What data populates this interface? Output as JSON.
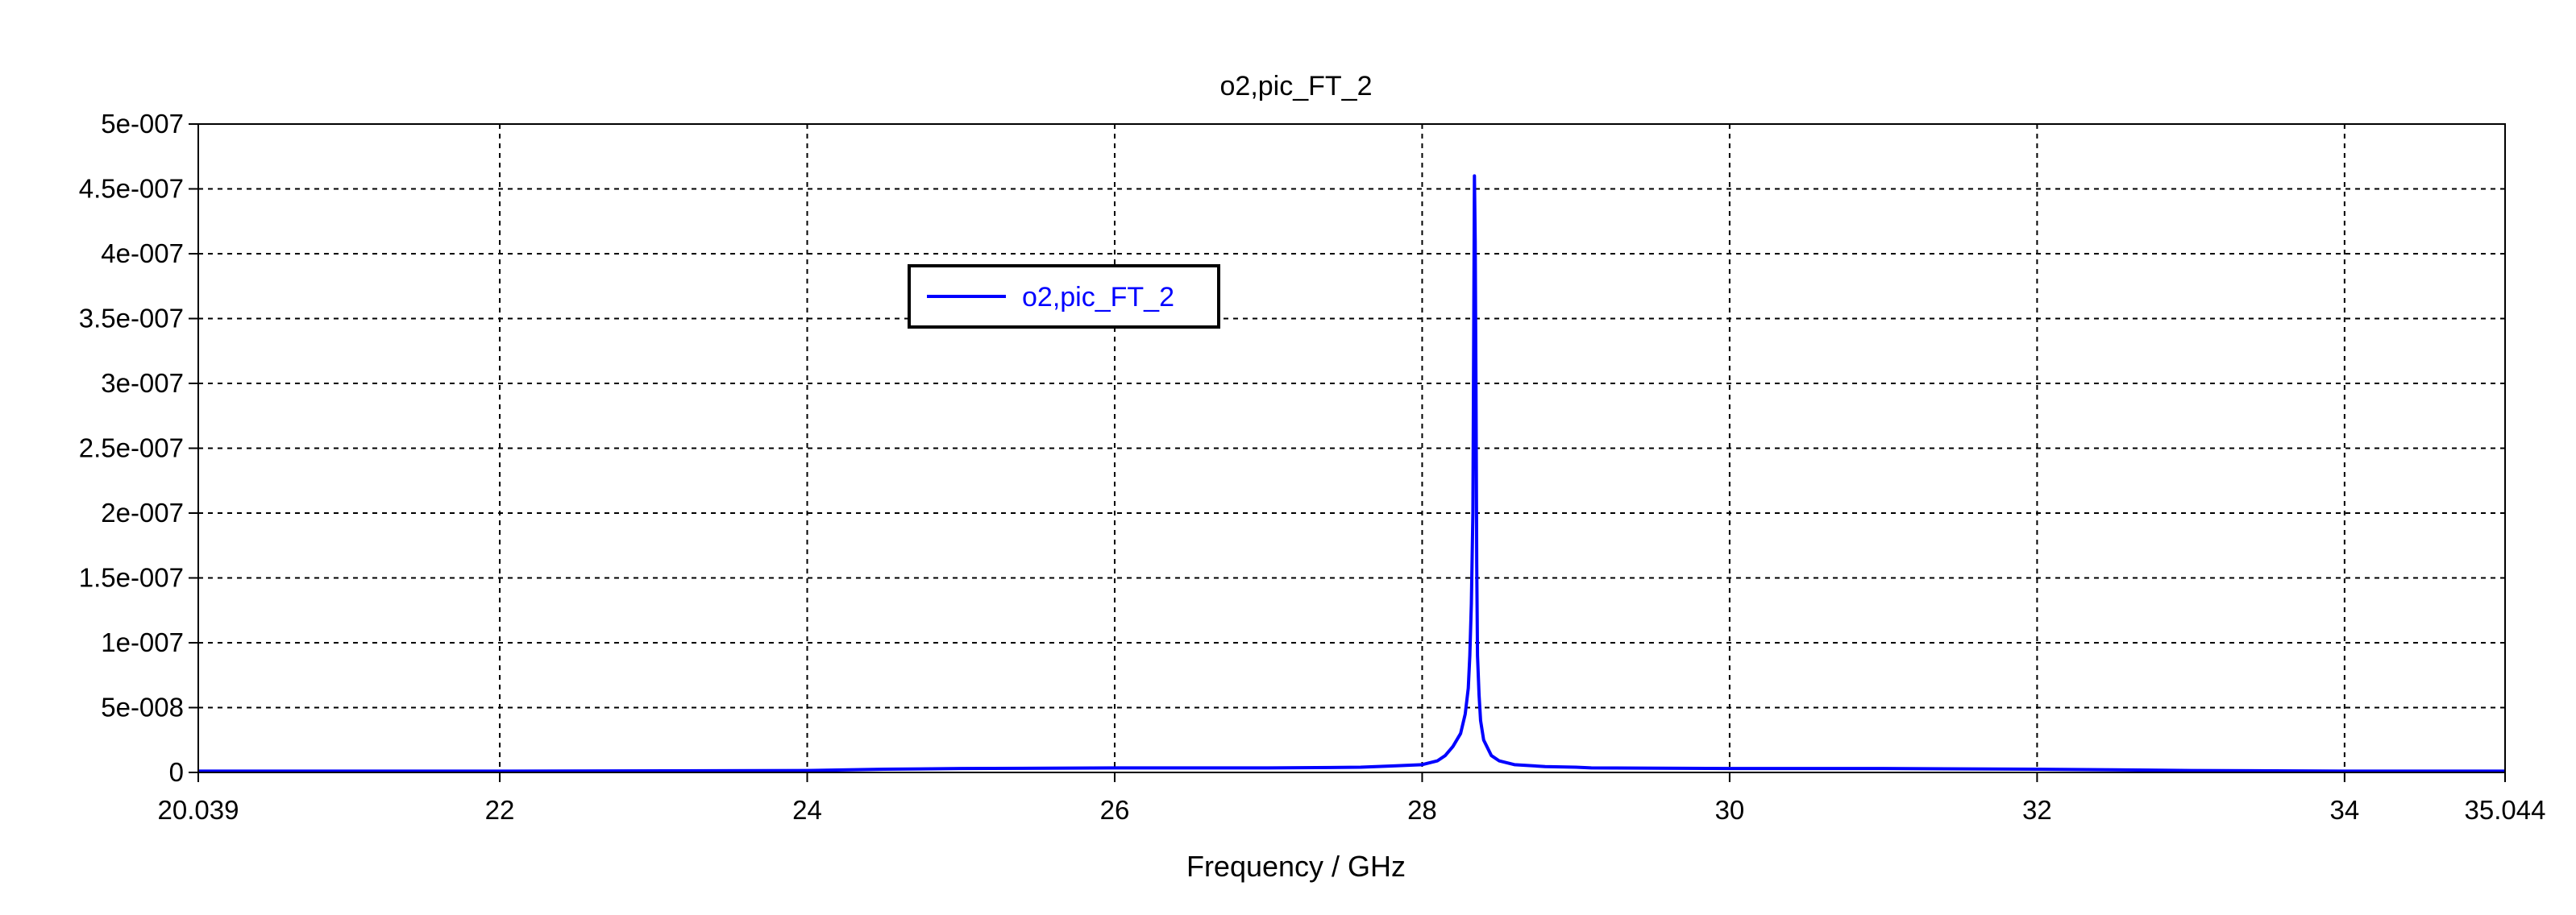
{
  "chart_data": {
    "type": "line",
    "title": "o2,pic_FT_2",
    "xlabel": "Frequency / GHz",
    "ylabel": "",
    "xlim": [
      20.039,
      35.044
    ],
    "ylim": [
      0,
      5e-07
    ],
    "x_ticks": [
      "20.039",
      "22",
      "24",
      "26",
      "28",
      "30",
      "32",
      "34",
      "35.044"
    ],
    "x_tick_values": [
      20.039,
      22,
      24,
      26,
      28,
      30,
      32,
      34,
      35.044
    ],
    "y_ticks": [
      "0",
      "5e-008",
      "1e-007",
      "1.5e-007",
      "2e-007",
      "2.5e-007",
      "3e-007",
      "3.5e-007",
      "4e-007",
      "4.5e-007",
      "5e-007"
    ],
    "y_tick_values": [
      0,
      5e-08,
      1e-07,
      1.5e-07,
      2e-07,
      2.5e-07,
      3e-07,
      3.5e-07,
      4e-07,
      4.5e-07,
      5e-07
    ],
    "grid": true,
    "legend": {
      "position": "upper-left",
      "entries": [
        "o2,pic_FT_2"
      ]
    },
    "series": [
      {
        "name": "o2,pic_FT_2",
        "color": "#0000ff",
        "x": [
          20.039,
          22.0,
          24.0,
          24.5,
          25.0,
          26.0,
          27.0,
          27.6,
          27.8,
          28.0,
          28.1,
          28.15,
          28.2,
          28.25,
          28.28,
          28.3,
          28.31,
          28.32,
          28.33,
          28.335,
          28.34,
          28.345,
          28.35,
          28.355,
          28.36,
          28.37,
          28.38,
          28.4,
          28.45,
          28.5,
          28.6,
          28.8,
          29.0,
          29.1,
          30.0,
          31.0,
          32.0,
          32.5,
          33.0,
          34.0,
          35.044
        ],
        "y": [
          1e-09,
          1e-09,
          1.5e-09,
          2.5e-09,
          3e-09,
          3.5e-09,
          3.5e-09,
          4e-09,
          5e-09,
          6e-09,
          9e-09,
          1.3e-08,
          2e-08,
          3e-08,
          4.5e-08,
          6.5e-08,
          9e-08,
          1.3e-07,
          2e-07,
          3.3e-07,
          4.6e-07,
          4.1e-07,
          3e-07,
          1.6e-07,
          9e-08,
          6e-08,
          4e-08,
          2.5e-08,
          1.3e-08,
          9e-09,
          6e-09,
          4.5e-09,
          4e-09,
          3.5e-09,
          3e-09,
          3e-09,
          2.5e-09,
          2e-09,
          1.5e-09,
          1e-09,
          1e-09
        ]
      }
    ]
  }
}
